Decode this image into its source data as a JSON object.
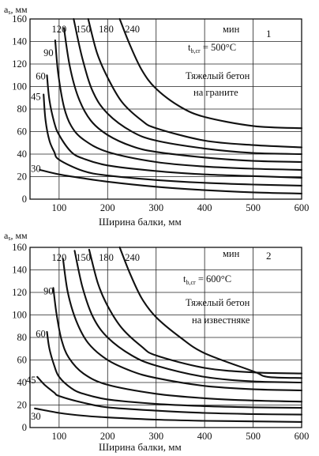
{
  "chart_data": [
    {
      "type": "line",
      "panel_number": "1",
      "ylabel_main": "a",
      "ylabel_sub": "s",
      "ylabel_unit": ", мм",
      "xlabel": "Ширина балки, мм",
      "xlim": [
        40,
        600
      ],
      "ylim": [
        0,
        160
      ],
      "xticks": [
        100,
        200,
        300,
        400,
        500,
        600
      ],
      "yticks": [
        0,
        20,
        40,
        60,
        80,
        100,
        120,
        140,
        160
      ],
      "note_t_sub": "b,cr",
      "note_temp": " = 500°C",
      "note_line1": "Тяжелый бетон",
      "note_line2": "на граните",
      "unit_label": "мин",
      "series": [
        {
          "name": "30",
          "label_at": [
            52,
            27
          ],
          "points": [
            [
              60,
              26
            ],
            [
              100,
              22
            ],
            [
              150,
              18.5
            ],
            [
              200,
              15.5
            ],
            [
              300,
              11
            ],
            [
              400,
              8
            ],
            [
              500,
              6
            ],
            [
              600,
              5
            ]
          ]
        },
        {
          "name": "45",
          "label_at": [
            52,
            91
          ],
          "points": [
            [
              68,
              93
            ],
            [
              72,
              70
            ],
            [
              80,
              52
            ],
            [
              90,
              42
            ],
            [
              100,
              35
            ],
            [
              150,
              25
            ],
            [
              200,
              21
            ],
            [
              300,
              17
            ],
            [
              400,
              14.5
            ],
            [
              500,
              13
            ],
            [
              600,
              12
            ]
          ]
        },
        {
          "name": "60",
          "label_at": [
            62,
            109
          ],
          "points": [
            [
              75,
              110
            ],
            [
              80,
              88
            ],
            [
              90,
              68
            ],
            [
              100,
              57
            ],
            [
              125,
              42
            ],
            [
              150,
              36
            ],
            [
              200,
              30
            ],
            [
              300,
              25
            ],
            [
              400,
              22
            ],
            [
              500,
              20.5
            ],
            [
              600,
              19
            ]
          ]
        },
        {
          "name": "90",
          "label_at": [
            78,
            130
          ],
          "points": [
            [
              92,
              141
            ],
            [
              98,
              112
            ],
            [
              110,
              82
            ],
            [
              125,
              65
            ],
            [
              150,
              53
            ],
            [
              200,
              42
            ],
            [
              300,
              33
            ],
            [
              400,
              29
            ],
            [
              500,
              27
            ],
            [
              600,
              26
            ]
          ]
        },
        {
          "name": "120",
          "label_at": [
            100,
            151
          ],
          "points": [
            [
              110,
              152
            ],
            [
              122,
              118
            ],
            [
              140,
              90
            ],
            [
              165,
              70
            ],
            [
              200,
              57
            ],
            [
              250,
              47
            ],
            [
              300,
              42
            ],
            [
              400,
              37
            ],
            [
              500,
              34
            ],
            [
              600,
              33
            ]
          ]
        },
        {
          "name": "150",
          "label_at": [
            150,
            151
          ],
          "points": [
            [
              130,
              160
            ],
            [
              148,
              125
            ],
            [
              170,
              95
            ],
            [
              200,
              76
            ],
            [
              250,
              60
            ],
            [
              300,
              52
            ],
            [
              400,
              45
            ],
            [
              500,
              41
            ],
            [
              600,
              40
            ]
          ]
        },
        {
          "name": "180",
          "label_at": [
            197,
            151
          ],
          "points": [
            [
              160,
              160
            ],
            [
              178,
              130
            ],
            [
              200,
              108
            ],
            [
              230,
              86
            ],
            [
              270,
              70
            ],
            [
              300,
              63
            ],
            [
              400,
              52
            ],
            [
              500,
              48
            ],
            [
              600,
              46
            ]
          ]
        },
        {
          "name": "240",
          "label_at": [
            251,
            151
          ],
          "points": [
            [
              225,
              160
            ],
            [
              245,
              138
            ],
            [
              270,
              115
            ],
            [
              300,
              98
            ],
            [
              350,
              82
            ],
            [
              400,
              73
            ],
            [
              500,
              65
            ],
            [
              600,
              63
            ]
          ]
        }
      ]
    },
    {
      "type": "line",
      "panel_number": "2",
      "ylabel_main": "a",
      "ylabel_sub": "s",
      "ylabel_unit": ", мм",
      "xlabel": "Ширина балки, мм",
      "xlim": [
        40,
        600
      ],
      "ylim": [
        0,
        160
      ],
      "xticks": [
        100,
        200,
        300,
        400,
        500,
        600
      ],
      "yticks": [
        0,
        20,
        40,
        60,
        80,
        100,
        120,
        140,
        160
      ],
      "note_t_sub": "b,cr",
      "note_temp": " = 600°C",
      "note_line1": "Тяжелый бетон",
      "note_line2": "на известняке",
      "unit_label": "мин",
      "series": [
        {
          "name": "30",
          "label_at": [
            52,
            10
          ],
          "points": [
            [
              50,
              17
            ],
            [
              100,
              13
            ],
            [
              150,
              10.5
            ],
            [
              200,
              9
            ],
            [
              300,
              7
            ],
            [
              400,
              6
            ],
            [
              500,
              5.5
            ],
            [
              600,
              5
            ]
          ]
        },
        {
          "name": "45",
          "label_at": [
            42,
            42
          ],
          "points": [
            [
              55,
              45
            ],
            [
              70,
              38
            ],
            [
              90,
              31
            ],
            [
              100,
              28
            ],
            [
              150,
              22
            ],
            [
              200,
              18
            ],
            [
              300,
              15
            ],
            [
              400,
              13
            ],
            [
              500,
              12
            ],
            [
              600,
              11.5
            ]
          ]
        },
        {
          "name": "60",
          "label_at": [
            62,
            83
          ],
          "points": [
            [
              75,
              85
            ],
            [
              80,
              70
            ],
            [
              90,
              55
            ],
            [
              100,
              45
            ],
            [
              125,
              35
            ],
            [
              150,
              30
            ],
            [
              200,
              25
            ],
            [
              300,
              21
            ],
            [
              400,
              19
            ],
            [
              500,
              18
            ],
            [
              600,
              17.5
            ]
          ]
        },
        {
          "name": "90",
          "label_at": [
            78,
            121
          ],
          "points": [
            [
              88,
              124
            ],
            [
              95,
              100
            ],
            [
              105,
              78
            ],
            [
              120,
              62
            ],
            [
              150,
              48
            ],
            [
              200,
              38
            ],
            [
              300,
              30
            ],
            [
              400,
              26
            ],
            [
              500,
              24
            ],
            [
              600,
              23
            ]
          ]
        },
        {
          "name": "120",
          "label_at": [
            100,
            151
          ],
          "points": [
            [
              108,
              150
            ],
            [
              118,
              120
            ],
            [
              135,
              95
            ],
            [
              160,
              75
            ],
            [
              200,
              60
            ],
            [
              250,
              50
            ],
            [
              300,
              44
            ],
            [
              400,
              37
            ],
            [
              500,
              34
            ],
            [
              600,
              33
            ]
          ]
        },
        {
          "name": "150",
          "label_at": [
            150,
            151
          ],
          "points": [
            [
              132,
              157
            ],
            [
              148,
              125
            ],
            [
              170,
              98
            ],
            [
              200,
              80
            ],
            [
              250,
              64
            ],
            [
              300,
              55
            ],
            [
              400,
              45
            ],
            [
              500,
              41
            ],
            [
              600,
              40
            ]
          ]
        },
        {
          "name": "180",
          "label_at": [
            197,
            151
          ],
          "points": [
            [
              162,
              158
            ],
            [
              180,
              128
            ],
            [
              200,
              108
            ],
            [
              230,
              88
            ],
            [
              270,
              72
            ],
            [
              300,
              64
            ],
            [
              400,
              53
            ],
            [
              500,
              49
            ],
            [
              600,
              48
            ]
          ]
        },
        {
          "name": "240",
          "label_at": [
            251,
            151
          ],
          "points": [
            [
              225,
              160
            ],
            [
              245,
              138
            ],
            [
              270,
              115
            ],
            [
              300,
              98
            ],
            [
              350,
              80
            ],
            [
              400,
              66
            ],
            [
              500,
              50
            ],
            [
              530,
              45
            ],
            [
              600,
              44
            ]
          ]
        }
      ]
    }
  ]
}
